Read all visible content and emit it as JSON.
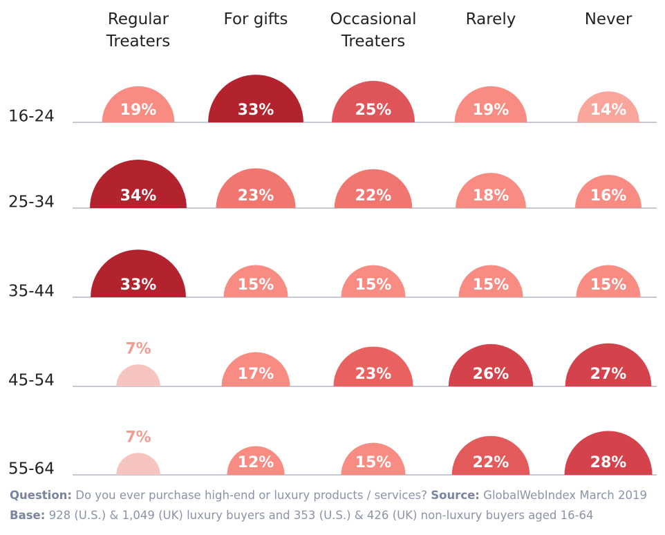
{
  "chart_data": {
    "type": "half-bubble",
    "categories": [
      "Regular Treaters",
      "For gifts",
      "Occasional Treaters",
      "Rarely",
      "Never"
    ],
    "series": [
      {
        "name": "16-24",
        "values": [
          19,
          33,
          25,
          19,
          14
        ],
        "value_labels": [
          "19%",
          "33%",
          "25%",
          "19%",
          "14%"
        ],
        "colors": [
          "#f88b82",
          "#b3232e",
          "#df555a",
          "#f88b82",
          "#f9a59c"
        ]
      },
      {
        "name": "25-34",
        "values": [
          34,
          23,
          22,
          18,
          16
        ],
        "value_labels": [
          "34%",
          "23%",
          "22%",
          "18%",
          "16%"
        ],
        "colors": [
          "#b3232e",
          "#f07670",
          "#f07670",
          "#f88b82",
          "#f88b82"
        ]
      },
      {
        "name": "35-44",
        "values": [
          33,
          15,
          15,
          15,
          15
        ],
        "value_labels": [
          "33%",
          "15%",
          "15%",
          "15%",
          "15%"
        ],
        "colors": [
          "#b3232e",
          "#f88b82",
          "#f88b82",
          "#f88b82",
          "#f88b82"
        ]
      },
      {
        "name": "45-54",
        "values": [
          7,
          17,
          23,
          26,
          27
        ],
        "value_labels": [
          "7%",
          "17%",
          "23%",
          "26%",
          "27%"
        ],
        "colors": [
          "#f6c4bf",
          "#f88b82",
          "#e9625f",
          "#d4434b",
          "#d4434b"
        ]
      },
      {
        "name": "55-64",
        "values": [
          7,
          12,
          15,
          22,
          28
        ],
        "value_labels": [
          "7%",
          "12%",
          "15%",
          "22%",
          "28%"
        ],
        "colors": [
          "#f6c4bf",
          "#f88b82",
          "#f88b82",
          "#e35a5b",
          "#d4434b"
        ]
      }
    ],
    "footnote": [
      {
        "label": "Question:",
        "text": "Do you ever purchase high-end or luxury products / services?"
      },
      {
        "label": "Source:",
        "text": "GlobalWebIndex March 2019"
      },
      {
        "label": "Base:",
        "text": "928 (U.S.) & 1,049 (UK) luxury buyers and 353 (U.S.) & 426 (UK) non-luxury buyers aged 16-64"
      }
    ]
  }
}
